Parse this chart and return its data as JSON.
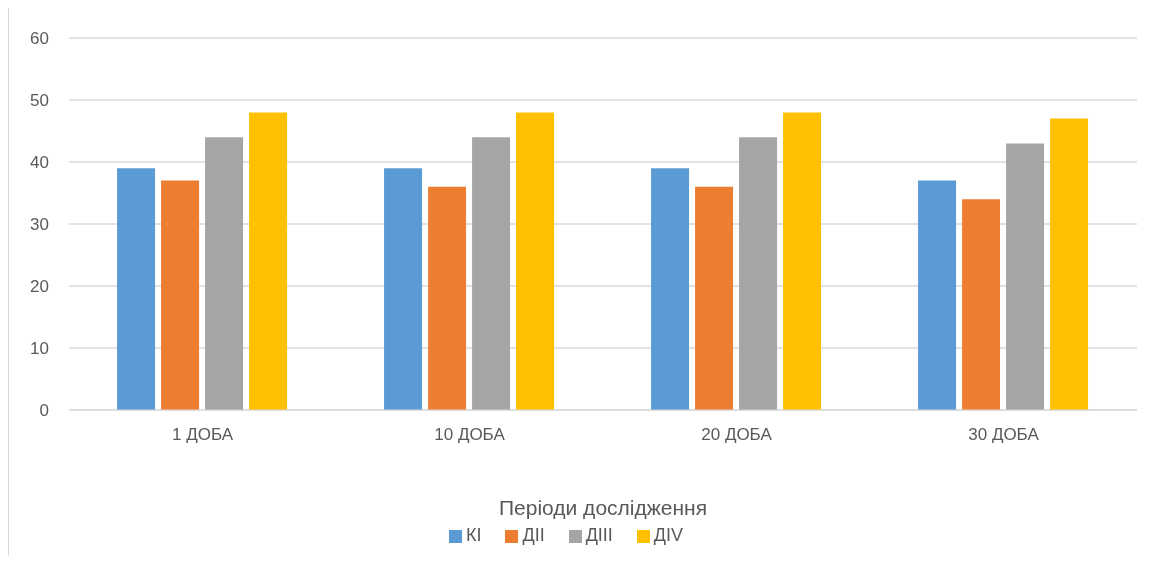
{
  "chart_data": {
    "type": "bar",
    "xlabel": "Періоди дослідження",
    "categories": [
      "1 ДОБА",
      "10 ДОБА",
      "20 ДОБА",
      "30 ДОБА"
    ],
    "series": [
      {
        "name": "КІ",
        "color": "#5b9bd5",
        "values": [
          39,
          39,
          39,
          37
        ]
      },
      {
        "name": "ДІІ",
        "color": "#ed7d31",
        "values": [
          37,
          36,
          36,
          34
        ]
      },
      {
        "name": "ДІІІ",
        "color": "#a5a5a5",
        "values": [
          44,
          44,
          44,
          43
        ]
      },
      {
        "name": "ДІV",
        "color": "#ffc000",
        "values": [
          48,
          48,
          48,
          47
        ]
      }
    ],
    "ylim": [
      0,
      60
    ],
    "yticks": [
      0,
      10,
      20,
      30,
      40,
      50,
      60
    ],
    "grid": "y",
    "legend": "bottom"
  }
}
